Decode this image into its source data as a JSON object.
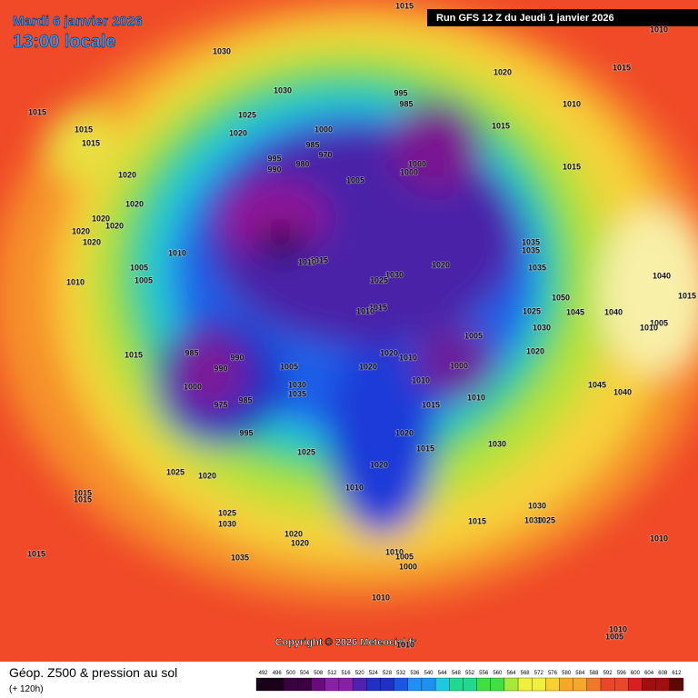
{
  "header": {
    "date": "Mardi 6 janvier 2026",
    "time": "13:00 locale",
    "run": "Run GFS 12 Z du Jeudi 1 janvier 2026"
  },
  "map": {
    "copyright": "Copyright © 2026 Meteociel.fr",
    "isobar_labels": [
      "1015",
      "1010",
      "1030",
      "1020",
      "1015",
      "1030",
      "995",
      "985",
      "1010",
      "1015",
      "1025",
      "1015",
      "1015",
      "1020",
      "1000",
      "985",
      "970",
      "995",
      "990",
      "980",
      "1015",
      "1000",
      "1000",
      "1015",
      "1005",
      "1020",
      "1020",
      "1020",
      "1020",
      "1020",
      "1020",
      "1010",
      "1035",
      "1035",
      "1015",
      "1010",
      "1020",
      "1005",
      "1035",
      "1030",
      "1005",
      "1010",
      "1025",
      "1040",
      "1015",
      "1050",
      "1015",
      "1010",
      "1045",
      "1040",
      "1025",
      "1030",
      "985",
      "990",
      "1005",
      "1005",
      "1010",
      "1020",
      "1010",
      "1015",
      "990",
      "1005",
      "1020",
      "1000",
      "1020",
      "1010",
      "1000",
      "1030",
      "1035",
      "975",
      "985",
      "1010",
      "1045",
      "1040",
      "1015",
      "995",
      "1020",
      "1015",
      "1030",
      "1025",
      "1020",
      "1025",
      "1020",
      "1010",
      "1015",
      "1015",
      "1030",
      "1025",
      "1030",
      "1030",
      "1025",
      "1015",
      "1020",
      "1020",
      "1015",
      "1035",
      "1010",
      "1005",
      "1000",
      "1010",
      "1010",
      "1010",
      "1005",
      "1010"
    ]
  },
  "footer": {
    "title": "Géop. Z500 & pression au sol",
    "lead": "(+ 120h)",
    "scale": [
      492,
      496,
      500,
      504,
      508,
      512,
      516,
      520,
      524,
      528,
      532,
      536,
      540,
      544,
      548,
      552,
      556,
      560,
      564,
      568,
      572,
      576,
      580,
      584,
      588,
      592,
      596,
      600,
      604,
      608,
      612
    ]
  }
}
